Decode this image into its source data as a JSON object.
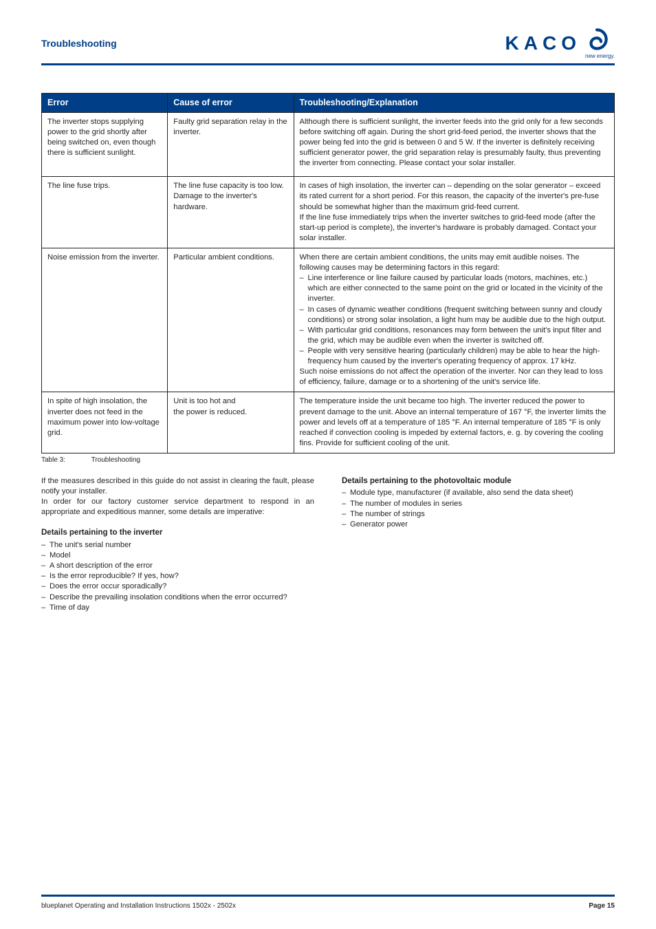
{
  "header": {
    "section_title": "Troubleshooting",
    "logo_text": "KACO",
    "logo_subtitle": "new energy.",
    "logo_swirl_color": "#003f87"
  },
  "table": {
    "headers": {
      "error": "Error",
      "cause": "Cause of error",
      "trouble": "Troubleshooting/Explanation"
    },
    "rows": [
      {
        "error": "The inverter stops supplying power to the grid shortly after being switched on, even though there is sufficient sunlight.",
        "cause": "Faulty grid separation relay in the inverter.",
        "trouble_text": "Although there is sufficient sunlight, the inverter feeds into the grid only for a few seconds before switching off again. During the short grid-feed period, the inverter shows that the power being fed into the grid is between 0 and 5 W. If the inverter is definitely receiving sufficient generator power, the grid separation relay is presumably faulty, thus preventing the inverter from connecting. Please contact your solar installer."
      },
      {
        "error": "The line fuse trips.",
        "cause": "The line fuse capacity is too low.\nDamage to the inverter's hardware.",
        "trouble_text": "In cases of high insolation, the inverter can – depending on the solar generator – exceed its rated current for a short period. For this reason, the capacity of the inverter's pre-fuse should be somewhat higher than the maximum grid-feed current.\nIf the line fuse immediately trips when the inverter switches to grid-feed mode (after the start-up period is complete), the inverter's hardware is probably damaged. Contact your solar installer."
      },
      {
        "error": "Noise emission from the inverter.",
        "cause": "Particular ambient conditions.",
        "trouble_pre": "When there are certain ambient conditions, the units may emit audible noises. The following causes may be determining factors in this regard:",
        "trouble_items": [
          "Line interference or line failure caused by particular loads (motors, machines, etc.) which are either connected to the same point on the grid or located in the vicinity of the inverter.",
          "In cases of dynamic weather conditions (frequent switching between sunny and cloudy conditions) or strong solar insolation, a light hum may be audible due to the high output.",
          "With particular grid conditions, resonances may form between the unit's input filter and the grid, which may be audible even when the inverter is switched off.",
          "People with very sensitive hearing (particularly children) may be able to hear the high-frequency hum caused by the inverter's operating frequency of approx. 17 kHz."
        ],
        "trouble_post": "Such noise emissions do not affect the operation of the inverter. Nor can they lead to loss of efficiency, failure, damage or to a shortening of the unit's service life."
      },
      {
        "error": "In spite of high insolation, the inverter does not feed in the maximum power into low-voltage grid.",
        "cause": "Unit is too hot and\nthe power is reduced.",
        "trouble_text": "The temperature inside the unit became too high. The inverter reduced the power to prevent damage to the unit. Above an internal temperature of 167 °F, the inverter limits the power and levels off at a temperature of 185 °F. An internal temperature of 185 °F is only reached if convection cooling is impeded by external factors, e. g. by covering the cooling fins. Provide for sufficient cooling of the unit."
      }
    ]
  },
  "caption": {
    "label": "Table 3:",
    "text": "Troubleshooting"
  },
  "body_text": {
    "left_intro1": "If the measures described in this guide do not assist in clearing the fault, please notify your installer.",
    "left_intro2": "In order for our factory customer service department to respond in an appropriate and expeditious manner, some details are imperative:",
    "inverter_heading": "Details pertaining to the inverter",
    "inverter_items": [
      "The unit's serial number",
      "Model",
      "A short description of the error",
      "Is the error reproducible? If yes, how?",
      "Does the error occur sporadically?",
      "Describe the prevailing insolation conditions when the error occurred?",
      "Time of day"
    ],
    "pv_heading": "Details pertaining to the photovoltaic module",
    "pv_items": [
      "Module type, manufacturer (if available, also send the data sheet)",
      "The number of modules in series",
      "The number of strings",
      "Generator power"
    ]
  },
  "footer": {
    "left": "blueplanet Operating and Installation Instructions 1502x - 2502x",
    "right_label": "Page",
    "right_number": "15"
  },
  "colors": {
    "brand_blue": "#003f87",
    "text": "#231f20",
    "white": "#ffffff"
  }
}
